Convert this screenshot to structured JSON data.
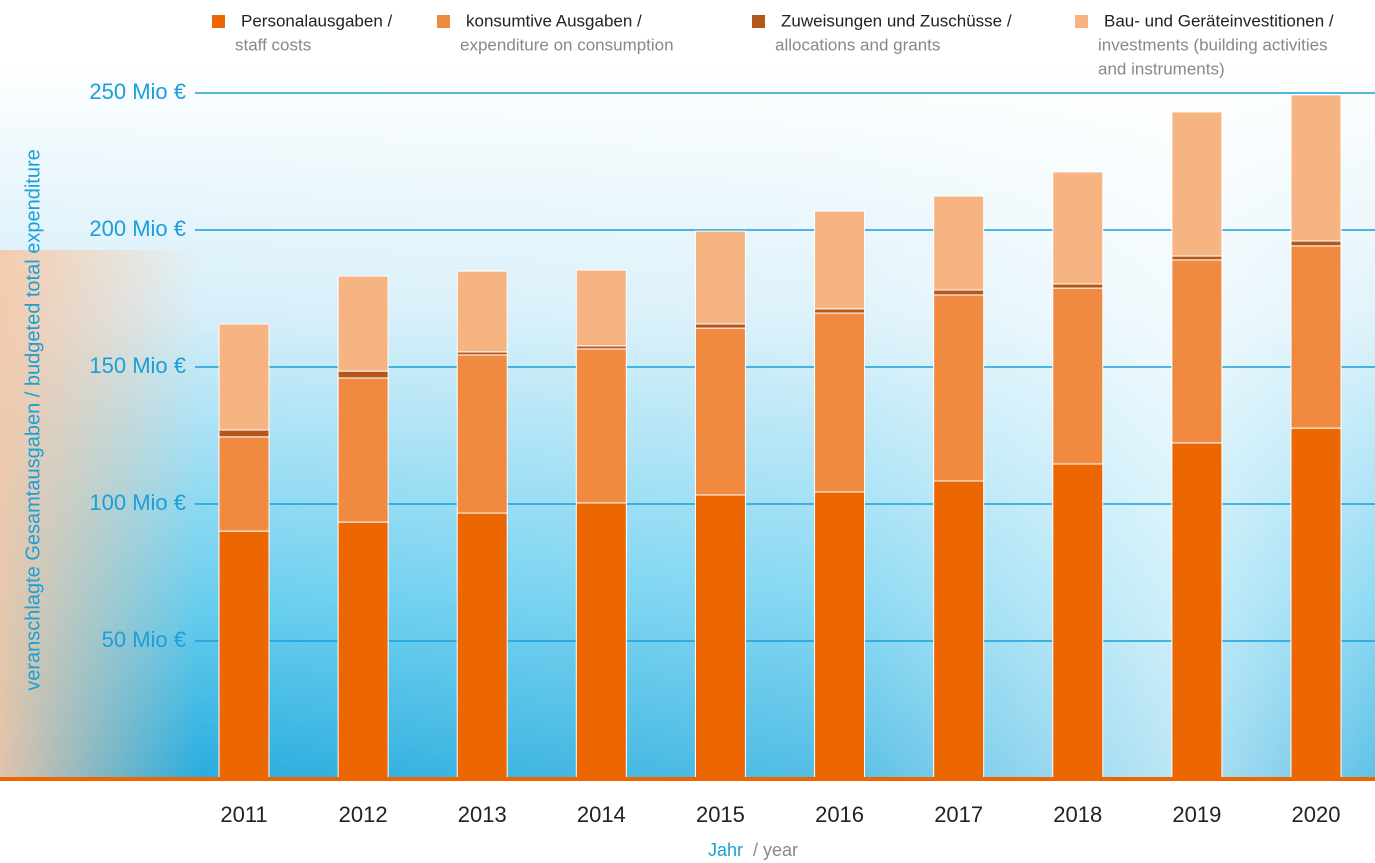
{
  "chart_data": {
    "type": "bar",
    "stacked": true,
    "y_label": "veranschlagte Gesamtausgaben / budgeted total expenditure",
    "x_label": [
      "Jahr",
      "/ year"
    ],
    "categories": [
      "2011",
      "2012",
      "2013",
      "2014",
      "2015",
      "2016",
      "2017",
      "2018",
      "2019",
      "2020"
    ],
    "series": [
      {
        "name": "Personalausgaben /",
        "name_en": [
          "staff costs"
        ],
        "color": "#ec6602",
        "values": [
          90.1,
          93.4,
          96.7,
          100.4,
          103.3,
          104.4,
          108.4,
          114.6,
          122.3,
          127.7
        ]
      },
      {
        "name": "konsumtive Ausgaben /",
        "name_en": [
          "expenditure on consumption"
        ],
        "color": "#f08a40",
        "values": [
          34.4,
          52.6,
          57.7,
          56.2,
          60.9,
          65.3,
          67.9,
          64.2,
          66.8,
          66.5
        ]
      },
      {
        "name": "Zuweisungen und Zuschüsse /",
        "name_en": [
          "allocations and grants"
        ],
        "color": "#b5561b",
        "values": [
          2.5,
          2.5,
          1.1,
          1.1,
          1.5,
          1.5,
          1.8,
          1.5,
          1.4,
          1.8
        ]
      },
      {
        "name": "Bau- und Geräteinvestitionen /",
        "name_en": [
          "investments (building activities",
          "and instruments)"
        ],
        "color": "#f6b482",
        "values": [
          38.7,
          34.7,
          29.5,
          27.7,
          33.9,
          35.7,
          34.3,
          40.9,
          52.6,
          53.3
        ]
      }
    ],
    "ylim": [
      0,
      250
    ],
    "yticks": [
      {
        "value": 50,
        "label": "50 Mio €"
      },
      {
        "value": 100,
        "label": "100 Mio €"
      },
      {
        "value": 150,
        "label": "150 Mio €"
      },
      {
        "value": 200,
        "label": "200 Mio €"
      },
      {
        "value": 250,
        "label": "250 Mio €"
      }
    ],
    "grid": true
  }
}
